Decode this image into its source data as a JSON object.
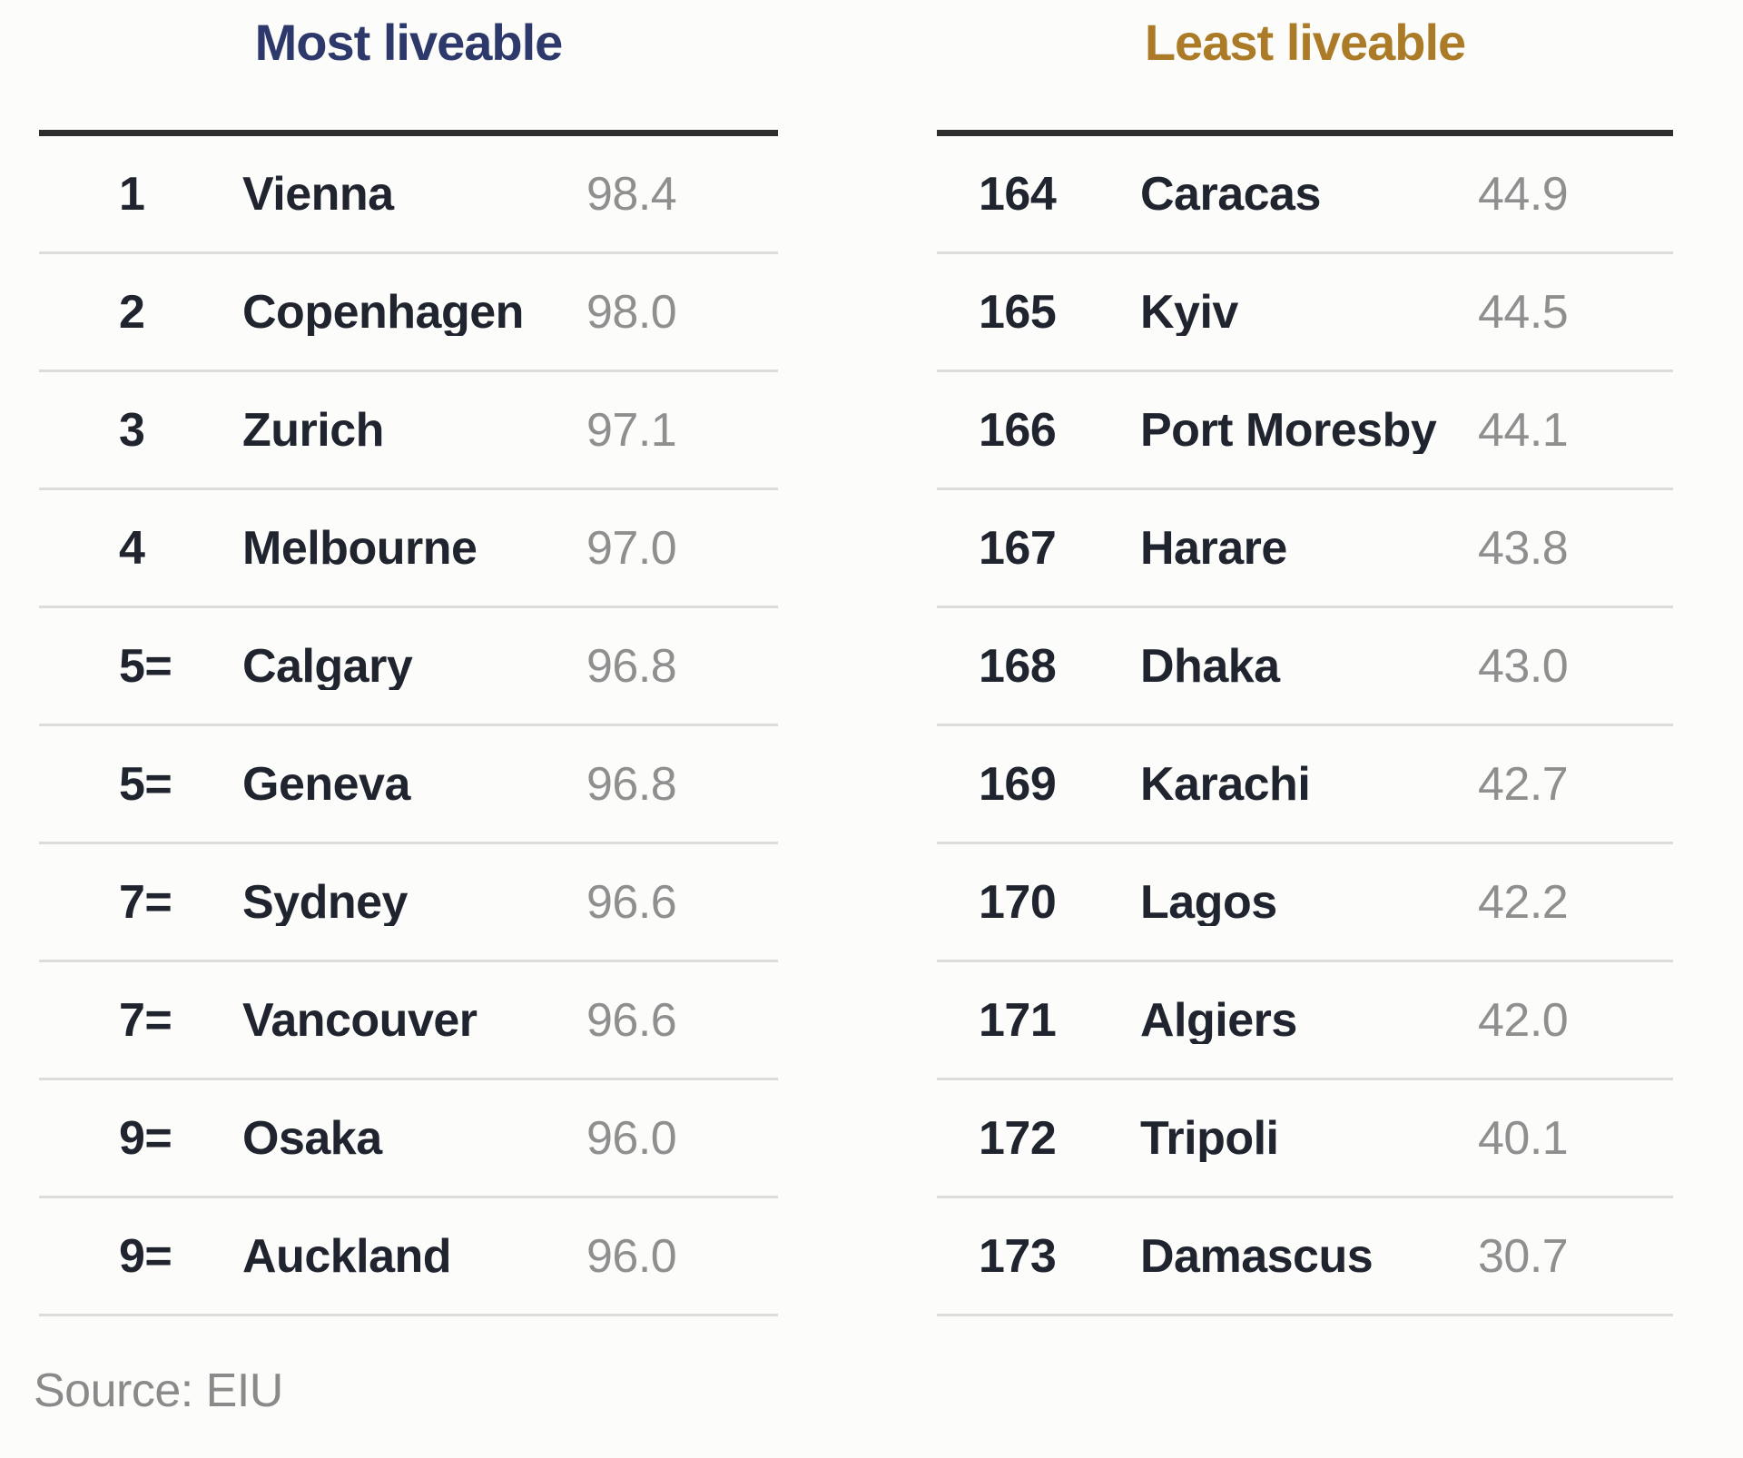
{
  "colors": {
    "background": "#fcfcfb",
    "title_most": "#2d386b",
    "title_least": "#ab7b28",
    "header_rule": "#2e2e2e",
    "row_divider": "#dcdcdc",
    "rank_city_text": "#20242e",
    "score_text": "#8f8f8f",
    "source_text": "#8a8a8a"
  },
  "source_note": "Source: EIU",
  "chart_data": {
    "type": "table",
    "source": "Source: EIU",
    "tables": [
      {
        "title": "Most liveable",
        "title_color": "#2d386b",
        "columns": [
          "rank",
          "city",
          "score"
        ],
        "rows": [
          {
            "rank": "1",
            "city": "Vienna",
            "score": "98.4"
          },
          {
            "rank": "2",
            "city": "Copenhagen",
            "score": "98.0"
          },
          {
            "rank": "3",
            "city": "Zurich",
            "score": "97.1"
          },
          {
            "rank": "4",
            "city": "Melbourne",
            "score": "97.0"
          },
          {
            "rank": "5=",
            "city": "Calgary",
            "score": "96.8"
          },
          {
            "rank": "5=",
            "city": "Geneva",
            "score": "96.8"
          },
          {
            "rank": "7=",
            "city": "Sydney",
            "score": "96.6"
          },
          {
            "rank": "7=",
            "city": "Vancouver",
            "score": "96.6"
          },
          {
            "rank": "9=",
            "city": "Osaka",
            "score": "96.0"
          },
          {
            "rank": "9=",
            "city": "Auckland",
            "score": "96.0"
          }
        ]
      },
      {
        "title": "Least liveable",
        "title_color": "#ab7b28",
        "columns": [
          "rank",
          "city",
          "score"
        ],
        "rows": [
          {
            "rank": "164",
            "city": "Caracas",
            "score": "44.9"
          },
          {
            "rank": "165",
            "city": "Kyiv",
            "score": "44.5"
          },
          {
            "rank": "166",
            "city": "Port Moresby",
            "score": "44.1"
          },
          {
            "rank": "167",
            "city": "Harare",
            "score": "43.8"
          },
          {
            "rank": "168",
            "city": "Dhaka",
            "score": "43.0"
          },
          {
            "rank": "169",
            "city": "Karachi",
            "score": "42.7"
          },
          {
            "rank": "170",
            "city": "Lagos",
            "score": "42.2"
          },
          {
            "rank": "171",
            "city": "Algiers",
            "score": "42.0"
          },
          {
            "rank": "172",
            "city": "Tripoli",
            "score": "40.1"
          },
          {
            "rank": "173",
            "city": "Damascus",
            "score": "30.7"
          }
        ]
      }
    ]
  }
}
